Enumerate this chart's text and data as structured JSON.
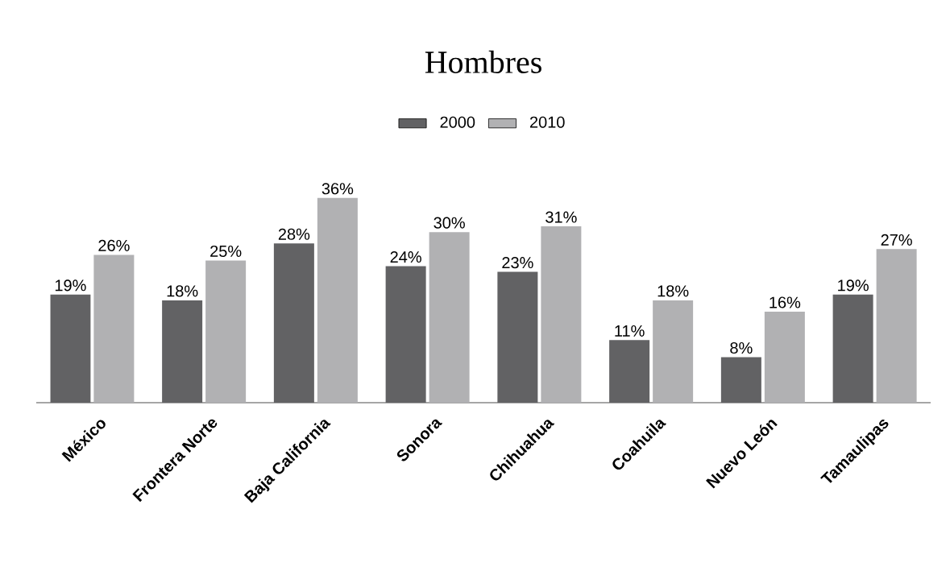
{
  "chart_data": {
    "type": "bar",
    "title": "Hombres",
    "categories": [
      "México",
      "Frontera Norte",
      "Baja California",
      "Sonora",
      "Chihuahua",
      "Coahuila",
      "Nuevo León",
      "Tamaulipas"
    ],
    "series": [
      {
        "name": "2000",
        "color": "#626264",
        "values": [
          19,
          18,
          28,
          24,
          23,
          11,
          8,
          19
        ],
        "value_labels": [
          "19%",
          "18%",
          "28%",
          "24%",
          "23%",
          "11%",
          "8%",
          "19%"
        ]
      },
      {
        "name": "2010",
        "color": "#b1b1b3",
        "values": [
          26,
          25,
          36,
          30,
          31,
          18,
          16,
          27
        ],
        "value_labels": [
          "26%",
          "25%",
          "36%",
          "30%",
          "31%",
          "18%",
          "16%",
          "27%"
        ]
      }
    ],
    "legend": "top"
  }
}
